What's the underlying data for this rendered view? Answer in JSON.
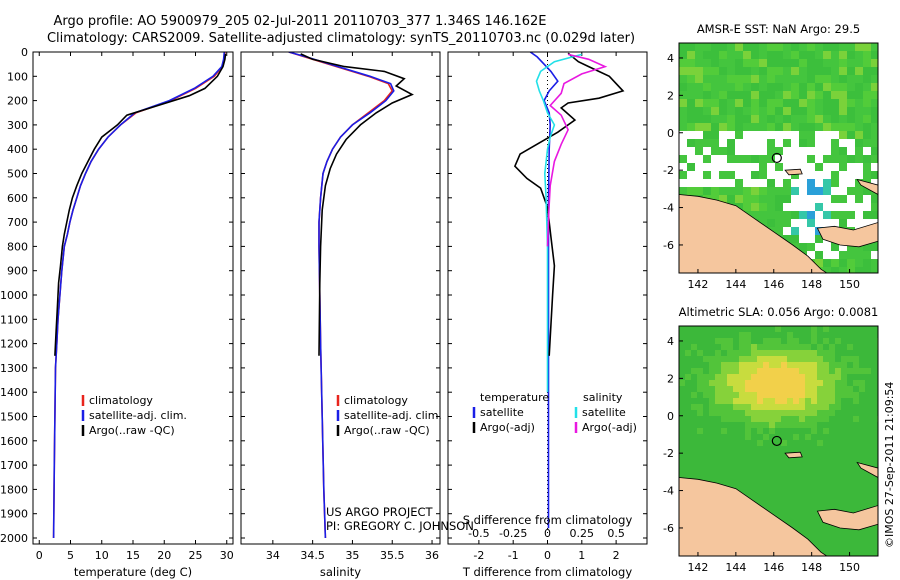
{
  "title_line1": "Argo profile: AO 5900979_205 02-Jul-2011 20110703_377 1.346S 146.162E",
  "title_line2": "Climatology: CARS2009. Satellite-adjusted climatology: synTS_20110703.nc (0.029d later)",
  "credit_line1": "US ARGO PROJECT",
  "credit_line2": "PI: GREGORY C. JOHNSON",
  "timestamp": "©IMOS 27-Sep-2011 21:09:54",
  "colors": {
    "climatology": "#e8241c",
    "satellite": "#1a1ee6",
    "argo": "#000000",
    "satellite_s": "#22e0e8",
    "argo_s": "#e818e0",
    "land": "#f5c69e",
    "field_green": "#3fc43f"
  },
  "chart_data": [
    {
      "type": "line",
      "xlabel": "temperature (deg C)",
      "xlim": [
        -1,
        31
      ],
      "xticks": [
        "0",
        "5",
        "10",
        "15",
        "20",
        "25",
        "30"
      ],
      "ylim": [
        2000,
        0
      ],
      "yticks": [
        "0",
        "100",
        "200",
        "300",
        "400",
        "500",
        "600",
        "700",
        "800",
        "900",
        "1000",
        "1100",
        "1200",
        "1300",
        "1400",
        "1500",
        "1600",
        "1700",
        "1800",
        "1900",
        "2000"
      ],
      "legend": [
        "climatology",
        "satellite-adj. clim.",
        "Argo(..raw -QC)"
      ],
      "series": [
        {
          "name": "climatology",
          "color": "#e8241c",
          "x": [
            29.7,
            29.6,
            29.3,
            28,
            25,
            21,
            15.5,
            13,
            11,
            9.5,
            8.3,
            7.4,
            6.6,
            6,
            5.4,
            4.9,
            4.5,
            4,
            3.6,
            3.3,
            3,
            2.8,
            2.6,
            2.5,
            2.4,
            2.3
          ],
          "y": [
            0,
            30,
            60,
            100,
            150,
            200,
            250,
            300,
            350,
            400,
            450,
            500,
            550,
            600,
            650,
            700,
            750,
            800,
            900,
            1000,
            1100,
            1200,
            1300,
            1500,
            1700,
            2000
          ]
        },
        {
          "name": "satellite-adj. clim.",
          "color": "#1a1ee6",
          "x": [
            29.6,
            29.5,
            29.2,
            27.8,
            24.8,
            20.8,
            15.3,
            13,
            11,
            9.5,
            8.3,
            7.4,
            6.6,
            6,
            5.4,
            4.9,
            4.5,
            4,
            3.6,
            3.3,
            3,
            2.8,
            2.6,
            2.5,
            2.4,
            2.3
          ],
          "y": [
            0,
            30,
            60,
            100,
            150,
            200,
            250,
            300,
            350,
            400,
            450,
            500,
            550,
            600,
            650,
            700,
            750,
            800,
            900,
            1000,
            1100,
            1200,
            1300,
            1500,
            1700,
            2000
          ]
        },
        {
          "name": "Argo(..raw -QC)",
          "color": "#000000",
          "x": [
            29.8,
            29.7,
            29.4,
            28.5,
            26.5,
            24,
            19,
            14,
            12.5,
            10,
            8.8,
            7.8,
            6.8,
            6,
            5.3,
            4.8,
            4.4,
            4,
            3.7,
            3.4,
            3.1,
            2.9,
            2.7,
            2.5
          ],
          "y": [
            8,
            30,
            60,
            100,
            150,
            180,
            220,
            260,
            300,
            350,
            400,
            450,
            500,
            550,
            600,
            650,
            700,
            750,
            800,
            880,
            950,
            1050,
            1150,
            1250
          ]
        }
      ]
    },
    {
      "type": "line",
      "xlabel": "salinity",
      "xlim": [
        33.6,
        36.1
      ],
      "xticks": [
        "34",
        "34.5",
        "35",
        "35.5",
        "36"
      ],
      "ylim": [
        2000,
        0
      ],
      "legend": [
        "climatology",
        "satellite-adj. clim.",
        "Argo(..raw -QC)"
      ],
      "series": [
        {
          "name": "climatology",
          "color": "#e8241c",
          "x": [
            34.2,
            34.4,
            34.8,
            35.2,
            35.45,
            35.5,
            35.4,
            35.2,
            35,
            34.85,
            34.75,
            34.68,
            34.63,
            34.6,
            34.58,
            34.58,
            34.59,
            34.6,
            34.62,
            34.64,
            34.66
          ],
          "y": [
            0,
            20,
            60,
            100,
            130,
            160,
            200,
            250,
            300,
            350,
            400,
            450,
            500,
            600,
            700,
            800,
            1000,
            1200,
            1500,
            1800,
            2000
          ]
        },
        {
          "name": "satellite-adj. clim.",
          "color": "#1a1ee6",
          "x": [
            34.2,
            34.42,
            34.82,
            35.22,
            35.48,
            35.52,
            35.42,
            35.22,
            35,
            34.85,
            34.75,
            34.68,
            34.63,
            34.6,
            34.58,
            34.58,
            34.59,
            34.6,
            34.62,
            34.64,
            34.66
          ],
          "y": [
            0,
            20,
            60,
            100,
            130,
            160,
            200,
            250,
            300,
            350,
            400,
            450,
            500,
            600,
            700,
            800,
            1000,
            1200,
            1500,
            1800,
            2000
          ]
        },
        {
          "name": "Argo(..raw -QC)",
          "color": "#000000",
          "x": [
            34.35,
            34.5,
            34.9,
            35.4,
            35.65,
            35.55,
            35.75,
            35.5,
            35.3,
            35.1,
            34.92,
            34.8,
            34.72,
            34.66,
            34.62,
            34.6,
            34.59,
            34.58
          ],
          "y": [
            8,
            30,
            60,
            80,
            110,
            140,
            175,
            210,
            250,
            300,
            360,
            420,
            480,
            550,
            650,
            800,
            950,
            1250
          ]
        }
      ]
    },
    {
      "type": "line",
      "xlabel_bottom": "T difference from climatology",
      "xlabel_top": "S difference from climatology",
      "xticks_T": [
        "-2",
        "-1",
        "0",
        "1",
        "2"
      ],
      "xticks_S": [
        "-0.5",
        "-0.25",
        "0",
        "0.25",
        "0.5"
      ],
      "xlim_T": [
        -2.9,
        2.9
      ],
      "xlim_S": [
        -0.725,
        0.725
      ],
      "ylim": [
        2000,
        0
      ],
      "legend_temperature_header": "temperature",
      "legend_salinity_header": "salinity",
      "legend": [
        "satellite",
        "Argo(-adj)",
        "satellite",
        "Argo(-adj)"
      ],
      "series": [
        {
          "name": "satellite",
          "color": "#1a1ee6",
          "axis": "T",
          "x": [
            -0.5,
            -0.3,
            -0.1,
            0.1,
            0.3,
            0.05,
            -0.1,
            0.05,
            0.08,
            0.05,
            0.04,
            0.03,
            0.03,
            0.03,
            0.03,
            0.03,
            0.03,
            0.03
          ],
          "y": [
            0,
            20,
            50,
            80,
            120,
            160,
            200,
            250,
            300,
            400,
            500,
            600,
            800,
            1000,
            1200,
            1500,
            1800,
            1960
          ]
        },
        {
          "name": "Argo(-adj)",
          "color": "#000000",
          "axis": "T",
          "x": [
            0.6,
            0.9,
            1.2,
            1.8,
            2.2,
            1.5,
            0.6,
            0.4,
            0.8,
            0.3,
            -0.8,
            -0.95,
            -0.6,
            -0.2,
            0,
            0.1,
            0.2,
            0.15,
            0.05
          ],
          "y": [
            5,
            40,
            60,
            100,
            160,
            190,
            210,
            230,
            280,
            330,
            420,
            470,
            520,
            560,
            640,
            760,
            880,
            1000,
            1250
          ]
        },
        {
          "name": "satellite",
          "color": "#22e0e8",
          "axis": "S",
          "x": [
            0.25,
            0.05,
            -0.05,
            -0.08,
            -0.06,
            -0.03,
            0,
            0.05,
            0.02,
            0,
            -0.02,
            -0.01,
            0,
            0,
            0,
            0
          ],
          "y": [
            10,
            40,
            80,
            120,
            160,
            200,
            250,
            300,
            350,
            400,
            500,
            600,
            800,
            1000,
            1200,
            1400
          ]
        },
        {
          "name": "Argo(-adj)",
          "color": "#e818e0",
          "axis": "S",
          "x": [
            0.15,
            0.3,
            0.42,
            0.25,
            0.12,
            0.1,
            0.02,
            0.1,
            0.15,
            0.1,
            0.05,
            0.02,
            0.01,
            0
          ],
          "y": [
            10,
            30,
            60,
            90,
            130,
            170,
            220,
            260,
            320,
            380,
            450,
            550,
            650,
            800
          ]
        }
      ]
    },
    {
      "type": "heatmap",
      "title": "AMSR-E SST: NaN Argo: 29.5",
      "xticks": [
        "142",
        "144",
        "146",
        "148",
        "150"
      ],
      "yticks": [
        "4",
        "2",
        "0",
        "-2",
        "-4",
        "-6"
      ],
      "xlim": [
        141,
        151.5
      ],
      "ylim": [
        -7.5,
        4.8
      ],
      "marker": [
        146.162,
        -1.346
      ]
    },
    {
      "type": "heatmap",
      "title": "Altimetric SLA: 0.056 Argo: 0.0081",
      "xticks": [
        "142",
        "144",
        "146",
        "148",
        "150"
      ],
      "yticks": [
        "4",
        "2",
        "0",
        "-2",
        "-4",
        "-6"
      ],
      "xlim": [
        141,
        151.5
      ],
      "ylim": [
        -7.5,
        4.8
      ],
      "marker": [
        146.162,
        -1.346
      ]
    }
  ]
}
